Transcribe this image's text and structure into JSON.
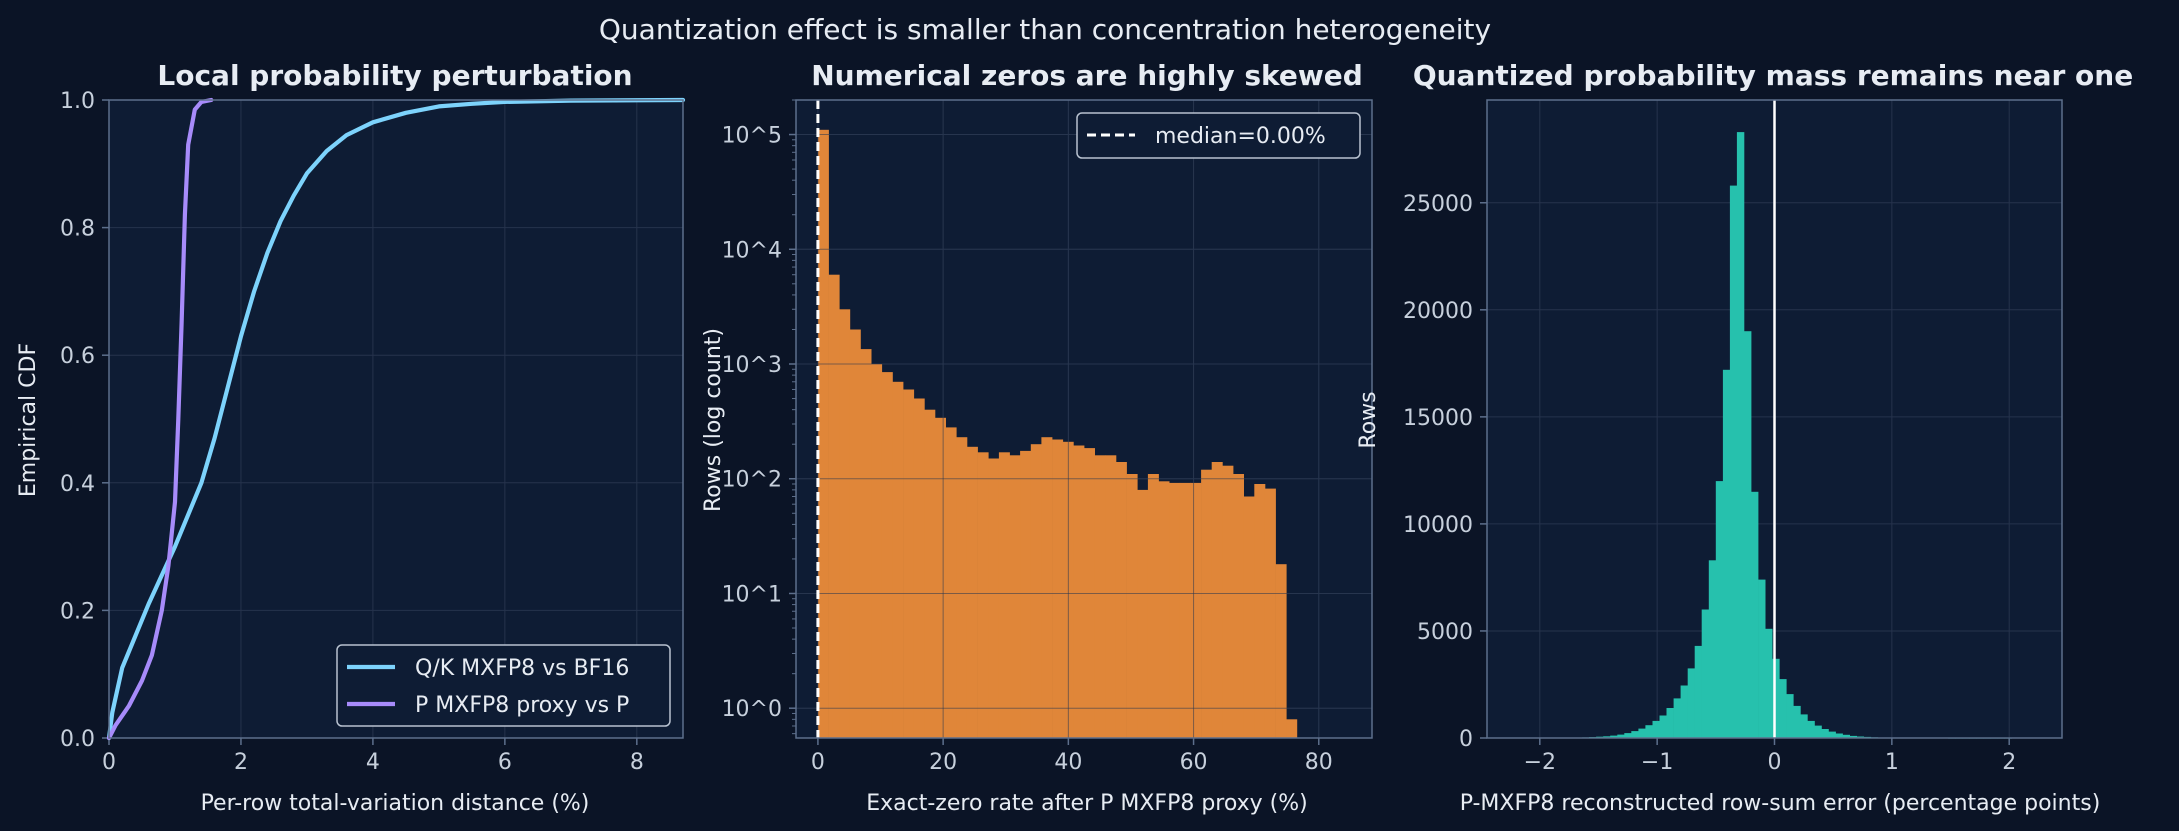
{
  "figure": {
    "suptitle": "Quantization effect is smaller than concentration heterogeneity",
    "colors": {
      "background": "#0b1426",
      "panel": "#0e1c34",
      "grid": "#26334c",
      "spine": "#5d6f8c",
      "text": "#e7ecf3",
      "tick_text": "#c7d0dc",
      "cdf_qk": "#7dd3fc",
      "cdf_p": "#a78bfa",
      "zeros_bar": "#e08639",
      "rowsum_bar": "#26c1ad",
      "median_line": "#ffffff"
    }
  },
  "chart_data": [
    {
      "type": "line",
      "title": "Local probability perturbation",
      "xlabel": "Per-row total-variation distance (%)",
      "ylabel": "Empirical CDF",
      "xlim": [
        0,
        8.7
      ],
      "ylim": [
        0,
        1
      ],
      "xticks": [
        0,
        2,
        4,
        6,
        8
      ],
      "yticks": [
        0,
        0.2,
        0.4,
        0.6,
        0.8,
        1.0
      ],
      "ytick_labels": [
        "0.0",
        "0.2",
        "0.4",
        "0.6",
        "0.8",
        "1.0"
      ],
      "grid": true,
      "legend": "lower-right",
      "series": [
        {
          "name": "Q/K MXFP8 vs BF16",
          "color": "#7dd3fc",
          "x": [
            0,
            0.05,
            0.2,
            0.4,
            0.6,
            0.8,
            1.0,
            1.2,
            1.4,
            1.6,
            1.8,
            2.0,
            2.2,
            2.4,
            2.6,
            2.8,
            3.0,
            3.3,
            3.6,
            4.0,
            4.5,
            5.0,
            5.5,
            6.0,
            7.0,
            8.7
          ],
          "y": [
            0,
            0.04,
            0.11,
            0.16,
            0.21,
            0.255,
            0.3,
            0.35,
            0.4,
            0.47,
            0.55,
            0.63,
            0.7,
            0.76,
            0.81,
            0.85,
            0.885,
            0.92,
            0.945,
            0.965,
            0.98,
            0.99,
            0.994,
            0.997,
            0.999,
            1.0
          ]
        },
        {
          "name": "P MXFP8 proxy vs P",
          "color": "#a78bfa",
          "x": [
            0,
            0.1,
            0.3,
            0.5,
            0.65,
            0.8,
            0.9,
            1.0,
            1.05,
            1.1,
            1.15,
            1.2,
            1.3,
            1.4,
            1.55
          ],
          "y": [
            0,
            0.02,
            0.05,
            0.09,
            0.13,
            0.2,
            0.27,
            0.37,
            0.5,
            0.65,
            0.82,
            0.93,
            0.985,
            0.997,
            1.0
          ]
        }
      ]
    },
    {
      "type": "bar",
      "title": "Numerical zeros are highly skewed",
      "xlabel": "Exact-zero rate after P MXFP8 proxy (%)",
      "ylabel": "Rows (log count)",
      "xlim": [
        -3.5,
        88.5
      ],
      "ylim": [
        0.55,
        200000
      ],
      "yscale": "log",
      "xticks": [
        0,
        20,
        40,
        60,
        80
      ],
      "ytick_labels": [
        "10^0",
        "10^1",
        "10^2",
        "10^3",
        "10^4",
        "10^5"
      ],
      "grid": true,
      "legend": "top-right",
      "legend_entry": "median=0.00%",
      "median": 0.0,
      "bin_start": 0,
      "bin_width": 1.7,
      "counts": [
        110000,
        6000,
        3000,
        2000,
        1350,
        1000,
        850,
        700,
        600,
        500,
        400,
        340,
        280,
        230,
        190,
        170,
        150,
        170,
        160,
        175,
        200,
        230,
        220,
        210,
        195,
        185,
        160,
        160,
        140,
        110,
        80,
        110,
        95,
        92,
        92,
        92,
        120,
        140,
        130,
        110,
        70,
        90,
        82,
        18,
        0.8
      ]
    },
    {
      "type": "bar",
      "title": "Quantized probability mass remains near one",
      "xlabel": "P-MXFP8 reconstructed row-sum error (percentage points)",
      "ylabel": "Rows",
      "xlim": [
        -2.45,
        2.45
      ],
      "ylim": [
        0,
        29800
      ],
      "xticks": [
        -2,
        -1,
        0,
        1,
        2
      ],
      "xtick_labels": [
        "−2",
        "−1",
        "0",
        "1",
        "2"
      ],
      "yticks": [
        0,
        5000,
        10000,
        15000,
        20000,
        25000
      ],
      "grid": true,
      "zero_line": 0,
      "bin_start": -2.0,
      "bin_width": 0.06,
      "counts": [
        5,
        8,
        10,
        12,
        15,
        20,
        30,
        40,
        60,
        80,
        110,
        160,
        230,
        320,
        440,
        600,
        800,
        1050,
        1400,
        1850,
        2450,
        3250,
        4300,
        6000,
        8300,
        12000,
        17200,
        25800,
        28300,
        19000,
        11500,
        7400,
        5100,
        3700,
        2750,
        2050,
        1500,
        1100,
        800,
        580,
        420,
        300,
        210,
        150,
        100,
        70,
        50,
        35,
        25,
        18,
        12,
        9,
        7,
        6,
        5,
        4,
        3,
        3,
        2,
        2,
        2,
        2,
        2,
        1,
        1,
        1,
        1
      ]
    }
  ]
}
